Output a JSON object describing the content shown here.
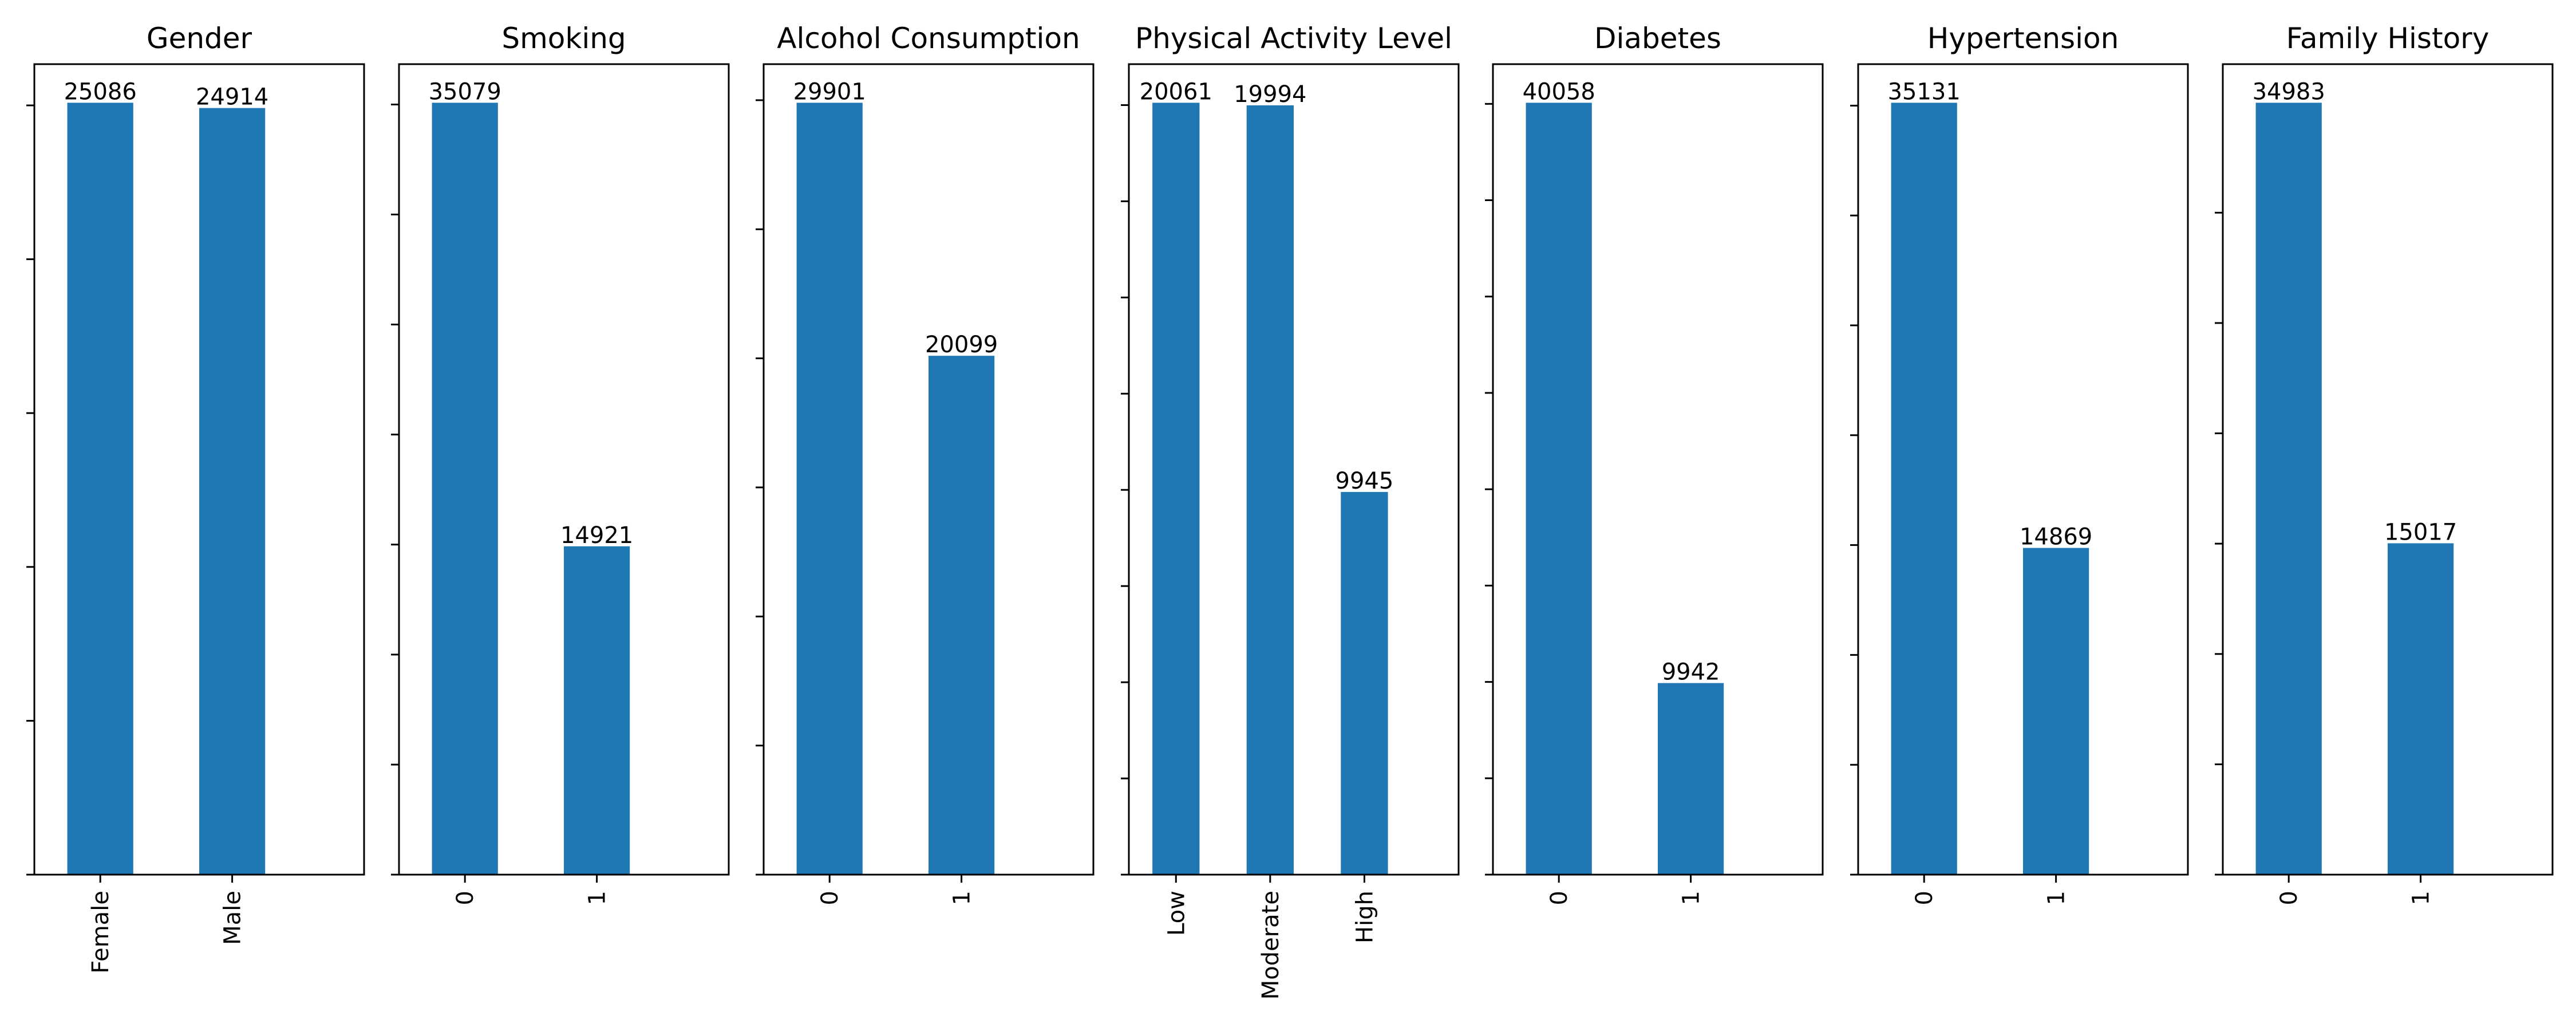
{
  "chart_data": [
    {
      "type": "bar",
      "title": "Gender",
      "categories": [
        "Female",
        "Male"
      ],
      "values": [
        25086,
        24914
      ],
      "ylim": [
        0,
        26340
      ],
      "yticks": [
        0,
        5000,
        10000,
        15000,
        20000,
        25000
      ],
      "colors": [
        "#1f77b4"
      ]
    },
    {
      "type": "bar",
      "title": "Smoking",
      "categories": [
        "0",
        "1"
      ],
      "values": [
        35079,
        14921
      ],
      "ylim": [
        0,
        36833
      ],
      "yticks": [
        0,
        5000,
        10000,
        15000,
        20000,
        25000,
        30000,
        35000
      ],
      "colors": [
        "#1f77b4"
      ]
    },
    {
      "type": "bar",
      "title": "Alcohol Consumption",
      "categories": [
        "0",
        "1"
      ],
      "values": [
        29901,
        20099
      ],
      "ylim": [
        0,
        31396
      ],
      "yticks": [
        0,
        5000,
        10000,
        15000,
        20000,
        25000,
        30000
      ],
      "colors": [
        "#1f77b4"
      ]
    },
    {
      "type": "bar",
      "title": "Physical Activity Level",
      "categories": [
        "Low",
        "Moderate",
        "High"
      ],
      "values": [
        20061,
        19994,
        9945
      ],
      "ylim": [
        0,
        21064
      ],
      "yticks": [
        0,
        2500,
        5000,
        7500,
        10000,
        12500,
        15000,
        17500,
        20000
      ],
      "colors": [
        "#1f77b4"
      ]
    },
    {
      "type": "bar",
      "title": "Diabetes",
      "categories": [
        "0",
        "1"
      ],
      "values": [
        40058,
        9942
      ],
      "ylim": [
        0,
        42061
      ],
      "yticks": [
        0,
        5000,
        10000,
        15000,
        20000,
        25000,
        30000,
        35000,
        40000
      ],
      "colors": [
        "#1f77b4"
      ]
    },
    {
      "type": "bar",
      "title": "Hypertension",
      "categories": [
        "0",
        "1"
      ],
      "values": [
        35131,
        14869
      ],
      "ylim": [
        0,
        36888
      ],
      "yticks": [
        0,
        5000,
        10000,
        15000,
        20000,
        25000,
        30000,
        35000
      ],
      "colors": [
        "#1f77b4"
      ]
    },
    {
      "type": "bar",
      "title": "Family History",
      "categories": [
        "0",
        "1"
      ],
      "values": [
        34983,
        15017
      ],
      "ylim": [
        0,
        36732
      ],
      "yticks": [
        0,
        5000,
        10000,
        15000,
        20000,
        25000,
        30000
      ],
      "colors": [
        "#1f77b4"
      ]
    }
  ]
}
